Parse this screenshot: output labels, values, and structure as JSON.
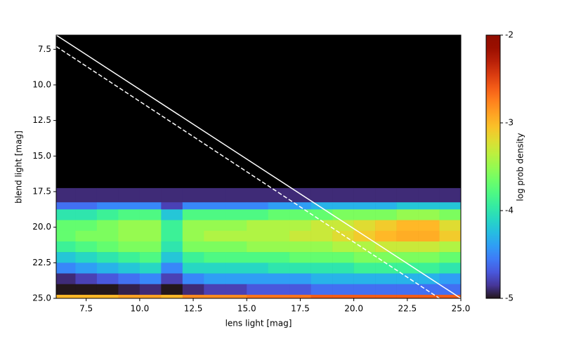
{
  "chart_data": {
    "type": "heatmap",
    "xlabel": "lens light [mag]",
    "ylabel": "blend light [mag]",
    "colorbar_label": "log prob density",
    "xlim": [
      6.1,
      25
    ],
    "ylim": [
      6.5,
      25
    ],
    "y_inverted": true,
    "xticks": [
      7.5,
      {
        "value": 10,
        "label": "10.0"
      },
      12.5,
      {
        "value": 15,
        "label": "15.0"
      },
      17.5,
      {
        "value": 20,
        "label": "20.0"
      },
      22.5,
      {
        "value": 25,
        "label": "25.0"
      }
    ],
    "yticks": [
      7.5,
      {
        "value": 10,
        "label": "10.0"
      },
      12.5,
      {
        "value": 15,
        "label": "15.0"
      },
      17.5,
      {
        "value": 20,
        "label": "20.0"
      },
      22.5,
      {
        "value": 25,
        "label": "25.0"
      }
    ],
    "colormap": "turbo",
    "background": "#000000",
    "zlim": [
      -5,
      -2
    ],
    "zticks": [
      -5,
      -4,
      -3,
      -2
    ],
    "x_edges": [
      6.1,
      7,
      8,
      9,
      10,
      11,
      12,
      13,
      14,
      15,
      16,
      17,
      18,
      19,
      20,
      21,
      22,
      23,
      24,
      25
    ],
    "y_edges": [
      17.25,
      18.25,
      18.75,
      19.5,
      20.25,
      21,
      21.75,
      22.5,
      23.25,
      24,
      24.75,
      25
    ],
    "z": [
      [
        -4.9,
        -4.9,
        -4.9,
        -4.9,
        -4.9,
        -4.9,
        -4.9,
        -4.9,
        -4.9,
        -4.9,
        -4.9,
        -4.9,
        -4.9,
        -4.9,
        -4.9,
        -4.9,
        -4.9,
        -4.9,
        -4.9
      ],
      [
        -4.6,
        -4.6,
        -4.5,
        -4.5,
        -4.5,
        -4.8,
        -4.5,
        -4.5,
        -4.5,
        -4.5,
        -4.4,
        -4.4,
        -4.3,
        -4.3,
        -4.3,
        -4.3,
        -4.2,
        -4.2,
        -4.2
      ],
      [
        -4.0,
        -4.0,
        -3.9,
        -3.8,
        -3.8,
        -4.2,
        -3.8,
        -3.8,
        -3.8,
        -3.8,
        -3.7,
        -3.7,
        -3.7,
        -3.6,
        -3.6,
        -3.6,
        -3.5,
        -3.5,
        -3.6
      ],
      [
        -3.7,
        -3.7,
        -3.6,
        -3.5,
        -3.5,
        -3.9,
        -3.5,
        -3.5,
        -3.5,
        -3.4,
        -3.4,
        -3.4,
        -3.3,
        -3.3,
        -3.2,
        -3.1,
        -3.0,
        -3.0,
        -3.2
      ],
      [
        -3.7,
        -3.6,
        -3.6,
        -3.5,
        -3.5,
        -3.9,
        -3.5,
        -3.4,
        -3.4,
        -3.4,
        -3.4,
        -3.3,
        -3.3,
        -3.2,
        -3.1,
        -3.0,
        -2.95,
        -2.95,
        -3.1
      ],
      [
        -3.9,
        -3.8,
        -3.7,
        -3.6,
        -3.6,
        -4.0,
        -3.6,
        -3.6,
        -3.6,
        -3.5,
        -3.5,
        -3.5,
        -3.5,
        -3.4,
        -3.4,
        -3.3,
        -3.3,
        -3.3,
        -3.4
      ],
      [
        -4.2,
        -4.1,
        -4.0,
        -3.9,
        -3.8,
        -4.2,
        -3.9,
        -3.8,
        -3.8,
        -3.8,
        -3.8,
        -3.7,
        -3.7,
        -3.7,
        -3.6,
        -3.6,
        -3.6,
        -3.6,
        -3.7
      ],
      [
        -4.5,
        -4.4,
        -4.3,
        -4.2,
        -4.1,
        -4.5,
        -4.1,
        -4.1,
        -4.1,
        -4.1,
        -4.0,
        -4.0,
        -4.0,
        -4.0,
        -3.9,
        -3.9,
        -3.9,
        -3.9,
        -4.0
      ],
      [
        -4.9,
        -4.8,
        -4.7,
        -4.6,
        -4.5,
        -4.8,
        -4.5,
        -4.4,
        -4.4,
        -4.4,
        -4.4,
        -4.4,
        -4.3,
        -4.3,
        -4.3,
        -4.3,
        -4.3,
        -4.3,
        -4.4
      ],
      [
        -5.0,
        -5.0,
        -5.0,
        -4.95,
        -4.9,
        -5.0,
        -4.9,
        -4.8,
        -4.8,
        -4.7,
        -4.7,
        -4.7,
        -4.6,
        -4.6,
        -4.6,
        -4.6,
        -4.6,
        -4.6,
        -4.6
      ],
      [
        -3.0,
        -3.0,
        -3.0,
        -2.9,
        -2.9,
        -3.0,
        -2.8,
        -2.8,
        -2.8,
        -2.7,
        -2.7,
        -2.7,
        -2.6,
        -2.6,
        -2.6,
        -2.6,
        -2.6,
        -2.6,
        -2.6
      ]
    ],
    "lines": [
      {
        "x": [
          6.1,
          25
        ],
        "y": [
          6.5,
          25
        ],
        "color": "#ffffff",
        "dashed": false
      },
      {
        "x": [
          6.1,
          24
        ],
        "y": [
          7.3,
          25
        ],
        "color": "#ffffff",
        "dashed": true
      }
    ]
  }
}
